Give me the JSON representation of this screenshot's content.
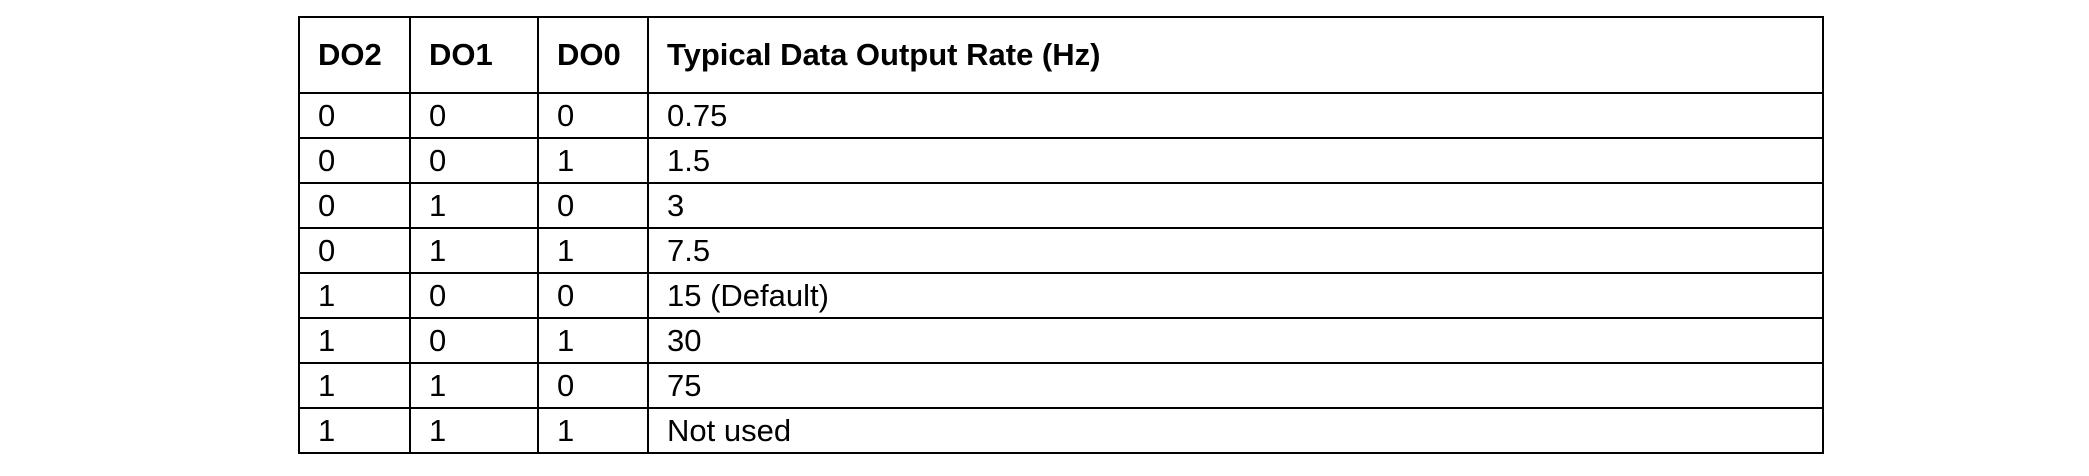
{
  "table": {
    "headers": [
      "DO2",
      "DO1",
      "DO0",
      "Typical Data Output Rate (Hz)"
    ],
    "rows": [
      [
        "0",
        "0",
        "0",
        "0.75"
      ],
      [
        "0",
        "0",
        "1",
        "1.5"
      ],
      [
        "0",
        "1",
        "0",
        "3"
      ],
      [
        "0",
        "1",
        "1",
        "7.5"
      ],
      [
        "1",
        "0",
        "0",
        "15 (Default)"
      ],
      [
        "1",
        "0",
        "1",
        "30"
      ],
      [
        "1",
        "1",
        "0",
        "75"
      ],
      [
        "1",
        "1",
        "1",
        "Not used"
      ]
    ]
  }
}
